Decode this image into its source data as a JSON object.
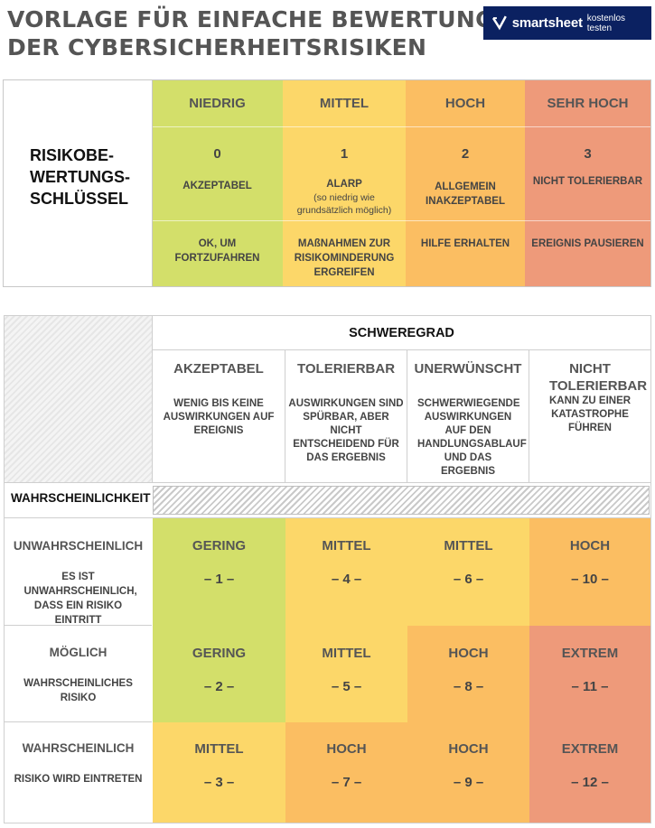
{
  "title": {
    "line1": "VORLAGE FÜR EINFACHE BEWERTUNG",
    "line2": "DER CYBERSICHERHEITSRISIKEN"
  },
  "logo": {
    "brand": "smartsheet",
    "cta": "kostenlos testen",
    "bg": "#0b2161"
  },
  "colors": {
    "green": "#d3df6a",
    "yellow": "#fcd769",
    "orange": "#fbbe62",
    "red": "#ee9a7a"
  },
  "key": {
    "label": "RISIKOBE-\nWERTUNGS-\nSCHLÜSSEL",
    "levels": [
      {
        "name": "NIEDRIG",
        "value": "0",
        "meaning": "AKZEPTABEL",
        "note": "",
        "action": "OK, UM FORTZUFAHREN",
        "color": "green"
      },
      {
        "name": "MITTEL",
        "value": "1",
        "meaning": "ALARP",
        "note": "(so niedrig wie grundsätzlich möglich)",
        "action": "MAßNAHMEN ZUR RISIKOMINDERUNG ERGREIFEN",
        "color": "yellow"
      },
      {
        "name": "HOCH",
        "value": "2",
        "meaning": "ALLGEMEIN INAKZEPTABEL",
        "note": "",
        "action": "HILFE ERHALTEN",
        "color": "orange"
      },
      {
        "name": "SEHR HOCH",
        "value": "3",
        "meaning": "NICHT TOLERIERBAR",
        "note": "",
        "action": "EREIGNIS PAUSIEREN",
        "color": "red"
      }
    ]
  },
  "matrix": {
    "severity_title": "SCHWEREGRAD",
    "likelihood_title": "WAHRSCHEINLICHKEIT",
    "severities": [
      {
        "name": "AKZEPTABEL",
        "desc": "WENIG BIS KEINE AUSWIRKUNGEN AUF EREIGNIS"
      },
      {
        "name": "TOLERIERBAR",
        "desc": "AUSWIRKUNGEN SIND SPÜRBAR, ABER NICHT ENTSCHEIDEND FÜR DAS ERGEBNIS"
      },
      {
        "name": "UNERWÜNSCHT",
        "desc": "SCHWERWIEGENDE AUSWIRKUNGEN AUF DEN HANDLUNGSABLAUF UND DAS ERGEBNIS"
      },
      {
        "name": "NICHT TOLERIERBAR",
        "desc": "KANN ZU EINER KATASTROPHE FÜHREN"
      }
    ],
    "rows": [
      {
        "name": "UNWAHRSCHEINLICH",
        "desc": "ES IST UNWAHRSCHEINLICH, DASS EIN RISIKO EINTRITT",
        "cells": [
          {
            "label": "GERING",
            "score": "– 1 –",
            "color": "green"
          },
          {
            "label": "MITTEL",
            "score": "– 4 –",
            "color": "yellow"
          },
          {
            "label": "MITTEL",
            "score": "– 6 –",
            "color": "yellow"
          },
          {
            "label": "HOCH",
            "score": "– 10 –",
            "color": "orange"
          }
        ]
      },
      {
        "name": "MÖGLICH",
        "desc": "WAHRSCHEINLICHES RISIKO",
        "cells": [
          {
            "label": "GERING",
            "score": "– 2 –",
            "color": "green"
          },
          {
            "label": "MITTEL",
            "score": "– 5 –",
            "color": "yellow"
          },
          {
            "label": "HOCH",
            "score": "– 8 –",
            "color": "orange"
          },
          {
            "label": "EXTREM",
            "score": "– 11 –",
            "color": "red"
          }
        ]
      },
      {
        "name": "WAHRSCHEINLICH",
        "desc": "RISIKO WIRD EINTRETEN",
        "cells": [
          {
            "label": "MITTEL",
            "score": "– 3 –",
            "color": "yellow"
          },
          {
            "label": "HOCH",
            "score": "– 7 –",
            "color": "orange"
          },
          {
            "label": "HOCH",
            "score": "– 9 –",
            "color": "orange"
          },
          {
            "label": "EXTREM",
            "score": "– 12 –",
            "color": "red"
          }
        ]
      }
    ]
  }
}
